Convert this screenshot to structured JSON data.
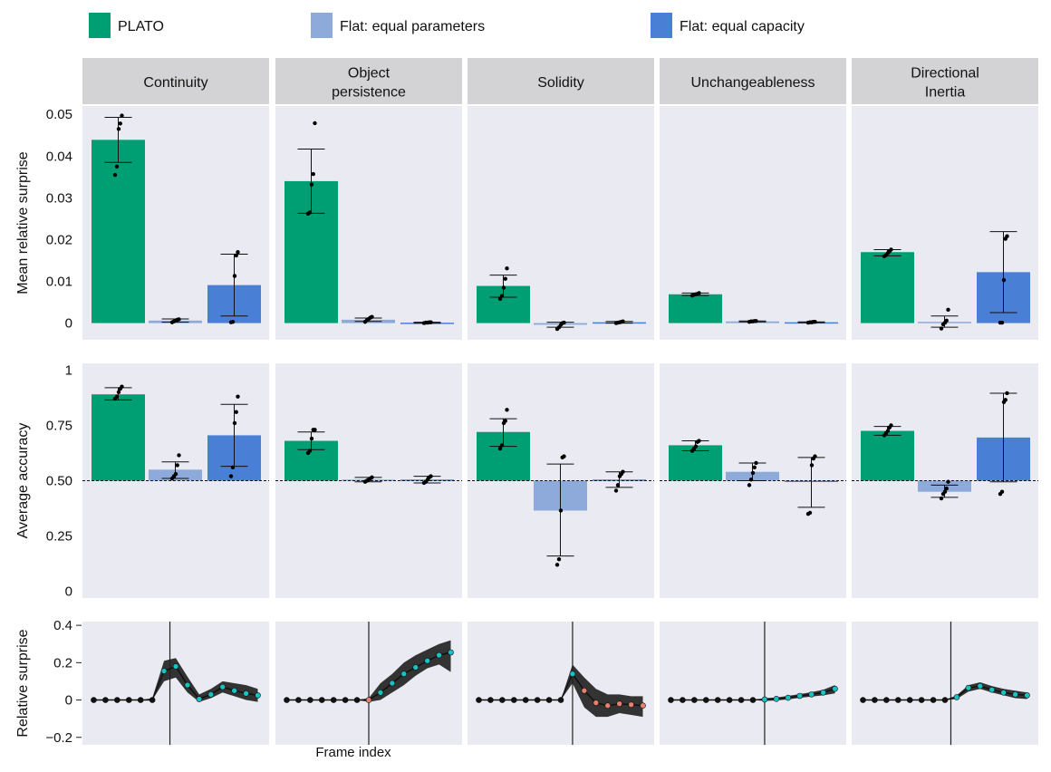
{
  "legend": [
    {
      "label": "PLATO",
      "color": "#009E73"
    },
    {
      "label": "Flat: equal parameters",
      "color": "#8DAADB"
    },
    {
      "label": "Flat: equal capacity",
      "color": "#4A7FD6"
    }
  ],
  "panels": [
    {
      "title_lines": [
        "Continuity"
      ]
    },
    {
      "title_lines": [
        "Object",
        "persistence"
      ]
    },
    {
      "title_lines": [
        "Solidity"
      ]
    },
    {
      "title_lines": [
        "Unchangeableness"
      ]
    },
    {
      "title_lines": [
        "Directional",
        "Inertia"
      ]
    }
  ],
  "chart_data": [
    {
      "type": "bar",
      "ylabel": "Mean relative surprise",
      "ylim": [
        -0.004,
        0.052
      ],
      "yticks": [
        0,
        0.01,
        0.02,
        0.03,
        0.04,
        0.05
      ],
      "ytick_labels": [
        "0",
        "0.01",
        "0.02",
        "0.03",
        "0.04",
        "0.05"
      ],
      "series_names": [
        "PLATO",
        "Flat: equal parameters",
        "Flat: equal capacity"
      ],
      "panels": [
        {
          "values": [
            0.0439,
            0.0006,
            0.0091
          ],
          "err": [
            [
              0.0385,
              0.0493
            ],
            [
              0.0002,
              0.001
            ],
            [
              0.0017,
              0.0165
            ]
          ],
          "points": [
            [
              0.0355,
              0.0375,
              0.0465,
              0.0478,
              0.0497
            ],
            [
              0.0002,
              0.0004,
              0.0006,
              0.0008,
              0.0009
            ],
            [
              0.0002,
              0.0003,
              0.0113,
              0.0162,
              0.017
            ]
          ]
        },
        {
          "values": [
            0.034,
            0.0008,
            0.0001
          ],
          "err": [
            [
              0.0263,
              0.0417
            ],
            [
              0.0004,
              0.0012
            ],
            [
              0.0,
              0.0002
            ]
          ],
          "points": [
            [
              0.0262,
              0.0265,
              0.0332,
              0.0357,
              0.0479
            ],
            [
              0.0003,
              0.0007,
              0.001,
              0.0013,
              0.0015
            ],
            [
              0.0,
              0.0001,
              0.0001,
              0.0002,
              0.0002
            ]
          ]
        },
        {
          "values": [
            0.0089,
            -0.0004,
            0.0002
          ],
          "err": [
            [
              0.0062,
              0.0115
            ],
            [
              -0.001,
              0.0002
            ],
            [
              0.0,
              0.0004
            ]
          ],
          "points": [
            [
              0.0058,
              0.0065,
              0.0085,
              0.0106,
              0.0131
            ],
            [
              -0.0014,
              -0.001,
              -0.0004,
              0.0,
              0.0001
            ],
            [
              0.0,
              0.0001,
              0.0002,
              0.0003,
              0.0004
            ]
          ]
        },
        {
          "values": [
            0.0069,
            0.0004,
            0.0002
          ],
          "err": [
            [
              0.0066,
              0.0072
            ],
            [
              0.0003,
              0.0005
            ],
            [
              0.0001,
              0.0003
            ]
          ],
          "points": [
            [
              0.0066,
              0.0068,
              0.0069,
              0.007,
              0.0072
            ],
            [
              0.0003,
              0.0004,
              0.0004,
              0.0005,
              0.0005
            ],
            [
              0.0001,
              0.0002,
              0.0002,
              0.0003,
              0.0003
            ]
          ]
        },
        {
          "values": [
            0.017,
            0.0003,
            0.0122
          ],
          "err": [
            [
              0.0161,
              0.0176
            ],
            [
              -0.001,
              0.0017
            ],
            [
              0.0025,
              0.0219
            ]
          ],
          "points": [
            [
              0.016,
              0.0163,
              0.0168,
              0.0172,
              0.0176
            ],
            [
              -0.0013,
              -0.0003,
              0.0001,
              0.0006,
              0.0032
            ],
            [
              0.0001,
              0.0001,
              0.0103,
              0.0202,
              0.0208
            ]
          ]
        }
      ]
    },
    {
      "type": "bar",
      "ylabel": "Average accuracy",
      "ylim": [
        -0.03,
        1.03
      ],
      "baseline": 0.5,
      "yticks": [
        0,
        0.25,
        0.5,
        0.75,
        1
      ],
      "ytick_labels": [
        "0",
        "0.25",
        "0.50",
        "0.75",
        "1"
      ],
      "series_names": [
        "PLATO",
        "Flat: equal parameters",
        "Flat: equal capacity"
      ],
      "panels": [
        {
          "values": [
            0.89,
            0.55,
            0.705
          ],
          "err": [
            [
              0.865,
              0.92
            ],
            [
              0.51,
              0.585
            ],
            [
              0.565,
              0.845
            ]
          ],
          "points": [
            [
              0.87,
              0.88,
              0.9,
              0.915,
              0.925
            ],
            [
              0.51,
              0.52,
              0.53,
              0.57,
              0.615
            ],
            [
              0.52,
              0.56,
              0.76,
              0.81,
              0.88
            ]
          ]
        },
        {
          "values": [
            0.68,
            0.505,
            0.505
          ],
          "err": [
            [
              0.64,
              0.72
            ],
            [
              0.495,
              0.515
            ],
            [
              0.49,
              0.52
            ]
          ],
          "points": [
            [
              0.625,
              0.635,
              0.69,
              0.73,
              0.73
            ],
            [
              0.495,
              0.5,
              0.505,
              0.51,
              0.515
            ],
            [
              0.49,
              0.495,
              0.505,
              0.515,
              0.52
            ]
          ]
        },
        {
          "values": [
            0.72,
            0.365,
            0.505
          ],
          "err": [
            [
              0.655,
              0.78
            ],
            [
              0.16,
              0.575
            ],
            [
              0.47,
              0.54
            ]
          ],
          "points": [
            [
              0.645,
              0.66,
              0.76,
              0.77,
              0.82
            ],
            [
              0.12,
              0.145,
              0.365,
              0.605,
              0.61
            ],
            [
              0.455,
              0.48,
              0.52,
              0.53,
              0.54
            ]
          ]
        },
        {
          "values": [
            0.66,
            0.54,
            0.495
          ],
          "err": [
            [
              0.635,
              0.68
            ],
            [
              0.5,
              0.58
            ],
            [
              0.38,
              0.605
            ]
          ],
          "points": [
            [
              0.635,
              0.645,
              0.655,
              0.675,
              0.68
            ],
            [
              0.48,
              0.505,
              0.535,
              0.56,
              0.58
            ],
            [
              0.35,
              0.355,
              0.57,
              0.6,
              0.61
            ]
          ]
        },
        {
          "values": [
            0.725,
            0.45,
            0.695
          ],
          "err": [
            [
              0.705,
              0.745
            ],
            [
              0.425,
              0.48
            ],
            [
              0.495,
              0.895
            ]
          ],
          "points": [
            [
              0.705,
              0.715,
              0.725,
              0.74,
              0.75
            ],
            [
              0.42,
              0.44,
              0.45,
              0.465,
              0.495
            ],
            [
              0.44,
              0.45,
              0.855,
              0.865,
              0.895
            ]
          ]
        }
      ]
    },
    {
      "type": "line",
      "ylabel": "Relative surprise",
      "xlabel": "Frame index",
      "ylim": [
        -0.24,
        0.42
      ],
      "yticks": [
        -0.2,
        0,
        0.2,
        0.4
      ],
      "ytick_labels": [
        "−0.2",
        "0",
        "0.2",
        "0.4"
      ],
      "x": [
        1,
        2,
        3,
        4,
        5,
        6,
        7,
        8,
        9,
        10,
        11,
        12,
        13,
        14,
        15
      ],
      "panels": [
        {
          "event_frame": 7.5,
          "mean": [
            0,
            0,
            0,
            0,
            0,
            0,
            0.155,
            0.18,
            0.08,
            0.005,
            0.03,
            0.07,
            0.05,
            0.035,
            0.025
          ],
          "lower": [
            0,
            0,
            0,
            0,
            0,
            0,
            0.1,
            0.12,
            0.04,
            -0.01,
            0.01,
            0.04,
            0.02,
            0.0,
            -0.01
          ],
          "upper": [
            0,
            0,
            0,
            0,
            0,
            0.01,
            0.21,
            0.225,
            0.125,
            0.03,
            0.06,
            0.1,
            0.09,
            0.08,
            0.06
          ],
          "marker_colors": [
            "#111111",
            "#111111",
            "#111111",
            "#111111",
            "#111111",
            "#111111",
            "#19C2C2",
            "#19C2C2",
            "#19C2C2",
            "#19C2C2",
            "#19C2C2",
            "#19C2C2",
            "#19C2C2",
            "#19C2C2",
            "#19C2C2"
          ]
        },
        {
          "event_frame": 8,
          "mean": [
            0,
            0,
            0,
            0,
            0,
            0,
            0,
            0,
            0.04,
            0.09,
            0.14,
            0.175,
            0.21,
            0.24,
            0.255
          ],
          "lower": [
            0,
            0,
            0,
            0,
            0,
            0,
            0,
            -0.01,
            0.0,
            0.04,
            0.08,
            0.13,
            0.17,
            0.19,
            0.15
          ],
          "upper": [
            0,
            0,
            0,
            0,
            0,
            0,
            0,
            0.01,
            0.09,
            0.14,
            0.2,
            0.24,
            0.27,
            0.3,
            0.32
          ],
          "marker_colors": [
            "#111111",
            "#111111",
            "#111111",
            "#111111",
            "#111111",
            "#111111",
            "#111111",
            "#E8806E",
            "#19C2C2",
            "#19C2C2",
            "#19C2C2",
            "#19C2C2",
            "#19C2C2",
            "#19C2C2",
            "#19C2C2"
          ]
        },
        {
          "event_frame": 9,
          "mean": [
            0,
            0,
            0,
            0,
            0,
            0,
            0,
            0,
            0.14,
            0.05,
            -0.015,
            -0.03,
            -0.02,
            -0.025,
            -0.03
          ],
          "lower": [
            0,
            0,
            0,
            0,
            0,
            0,
            0,
            0,
            0.09,
            -0.04,
            -0.09,
            -0.09,
            -0.07,
            -0.08,
            -0.09
          ],
          "upper": [
            0,
            0,
            0,
            0,
            0,
            0,
            0,
            0,
            0.19,
            0.12,
            0.06,
            0.03,
            0.03,
            0.02,
            0.02
          ],
          "marker_colors": [
            "#111111",
            "#111111",
            "#111111",
            "#111111",
            "#111111",
            "#111111",
            "#111111",
            "#111111",
            "#19C2C2",
            "#E8806E",
            "#E8806E",
            "#E8806E",
            "#E8806E",
            "#E8806E",
            "#E8806E"
          ]
        },
        {
          "event_frame": 9,
          "mean": [
            0,
            0,
            0,
            0,
            0,
            0,
            0,
            0,
            0.003,
            0.006,
            0.012,
            0.022,
            0.03,
            0.04,
            0.06
          ],
          "lower": [
            0,
            0,
            0,
            0,
            0,
            0,
            0,
            0,
            -0.005,
            -0.002,
            0.003,
            0.012,
            0.018,
            0.025,
            0.035
          ],
          "upper": [
            0,
            0,
            0,
            0,
            0,
            0,
            0,
            0,
            0.01,
            0.014,
            0.022,
            0.032,
            0.042,
            0.055,
            0.08
          ],
          "marker_colors": [
            "#111111",
            "#111111",
            "#111111",
            "#111111",
            "#111111",
            "#111111",
            "#111111",
            "#111111",
            "#19C2C2",
            "#19C2C2",
            "#19C2C2",
            "#19C2C2",
            "#19C2C2",
            "#19C2C2",
            "#19C2C2"
          ]
        },
        {
          "event_frame": 8.5,
          "mean": [
            0,
            0,
            0,
            0,
            0,
            0,
            0,
            0,
            0.015,
            0.065,
            0.075,
            0.055,
            0.04,
            0.03,
            0.025
          ],
          "lower": [
            0,
            0,
            0,
            0,
            0,
            0,
            0,
            0,
            0.005,
            0.045,
            0.06,
            0.04,
            0.025,
            0.01,
            0.005
          ],
          "upper": [
            0,
            0,
            0,
            0,
            0,
            0,
            0,
            0,
            0.025,
            0.08,
            0.095,
            0.075,
            0.06,
            0.05,
            0.04
          ],
          "marker_colors": [
            "#111111",
            "#111111",
            "#111111",
            "#111111",
            "#111111",
            "#111111",
            "#111111",
            "#111111",
            "#19C2C2",
            "#19C2C2",
            "#19C2C2",
            "#19C2C2",
            "#19C2C2",
            "#19C2C2",
            "#19C2C2"
          ]
        }
      ]
    }
  ]
}
